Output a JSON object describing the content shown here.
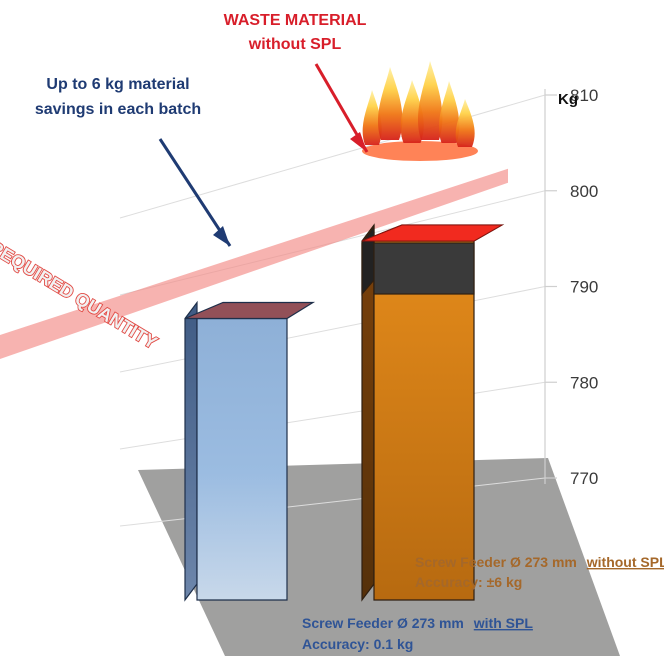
{
  "chart_data": {
    "type": "bar",
    "categories": [
      "Screw Feeder Ø 273 mm with SPL",
      "Screw Feeder Ø 273 mm without SPL"
    ],
    "values": [
      796,
      806
    ],
    "series": [
      {
        "values": [
          796,
          806
        ]
      }
    ],
    "ylabel": "Kg",
    "ylim": [
      770,
      810
    ],
    "yticks": [
      770,
      780,
      790,
      800,
      810
    ],
    "grid": true,
    "required_quantity": 800,
    "required_quantity_label": "REQUIRED QUANTITY",
    "annotations": {
      "savings": [
        "Up to 6 kg material",
        "savings in each batch"
      ],
      "waste": [
        "WASTE MATERIAL",
        "without SPL"
      ]
    },
    "labels": [
      {
        "prefix": "Screw Feeder Ø 273 mm",
        "emphasis": "with SPL",
        "accuracy": "Accuracy: 0.1 kg"
      },
      {
        "prefix": "Screw Feeder Ø 273 mm",
        "emphasis": "without SPL",
        "accuracy": "Accuracy: ±6 kg"
      }
    ],
    "colors": {
      "bar_with_spl": "#a9c3e0",
      "bar_without_spl": "#c97a16",
      "waste_band": "#3a3a3a",
      "required_band": "#f28b86",
      "savings_text": "#1f3b73",
      "waste_text": "#d81e2a",
      "label_without": "#a5682a",
      "label_with": "#2f5496"
    }
  }
}
